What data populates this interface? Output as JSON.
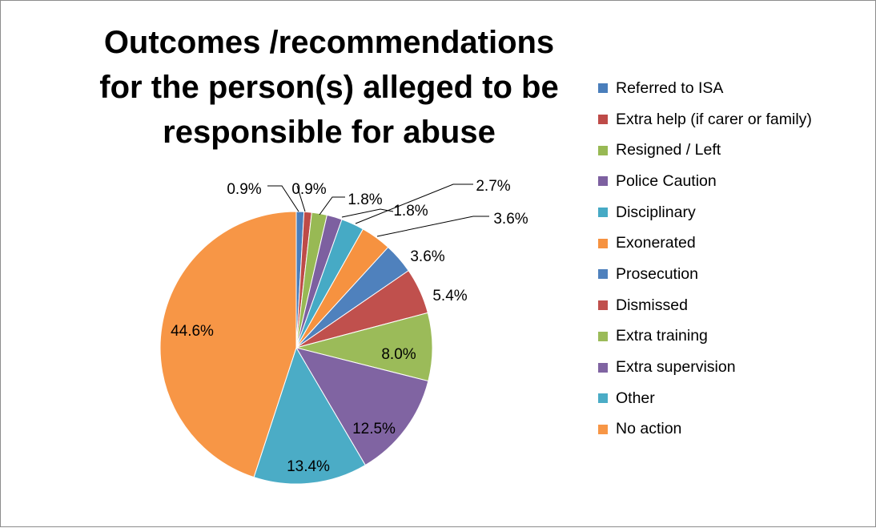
{
  "chart_data": {
    "type": "pie",
    "title": "Outcomes /recommendations for the person(s) alleged to be responsible for abuse",
    "legend_position": "right",
    "slices": [
      {
        "label": "Referred to ISA",
        "value": 0.9,
        "value_label": "0.9%",
        "color": "#4a7ebb"
      },
      {
        "label": "Extra help (if carer or family)",
        "value": 0.9,
        "value_label": "0.9%",
        "color": "#be4b48"
      },
      {
        "label": "Resigned / Left",
        "value": 1.8,
        "value_label": "1.8%",
        "color": "#98b954"
      },
      {
        "label": "Police Caution",
        "value": 1.8,
        "value_label": "1.8%",
        "color": "#7d60a0"
      },
      {
        "label": "Disciplinary",
        "value": 2.7,
        "value_label": "2.7%",
        "color": "#46aac5"
      },
      {
        "label": "Exonerated",
        "value": 3.6,
        "value_label": "3.6%",
        "color": "#f69240"
      },
      {
        "label": "Prosecution",
        "value": 3.6,
        "value_label": "3.6%",
        "color": "#4f81bd"
      },
      {
        "label": "Dismissed",
        "value": 5.4,
        "value_label": "5.4%",
        "color": "#c0504d"
      },
      {
        "label": "Extra training",
        "value": 8.0,
        "value_label": "8.0%",
        "color": "#9bbb59"
      },
      {
        "label": "Extra supervision",
        "value": 12.5,
        "value_label": "12.5%",
        "color": "#8064a2"
      },
      {
        "label": "Other",
        "value": 13.4,
        "value_label": "13.4%",
        "color": "#4bacc6"
      },
      {
        "label": "No action",
        "value": 44.6,
        "value_label": "44.6%",
        "color": "#f79646"
      }
    ]
  }
}
